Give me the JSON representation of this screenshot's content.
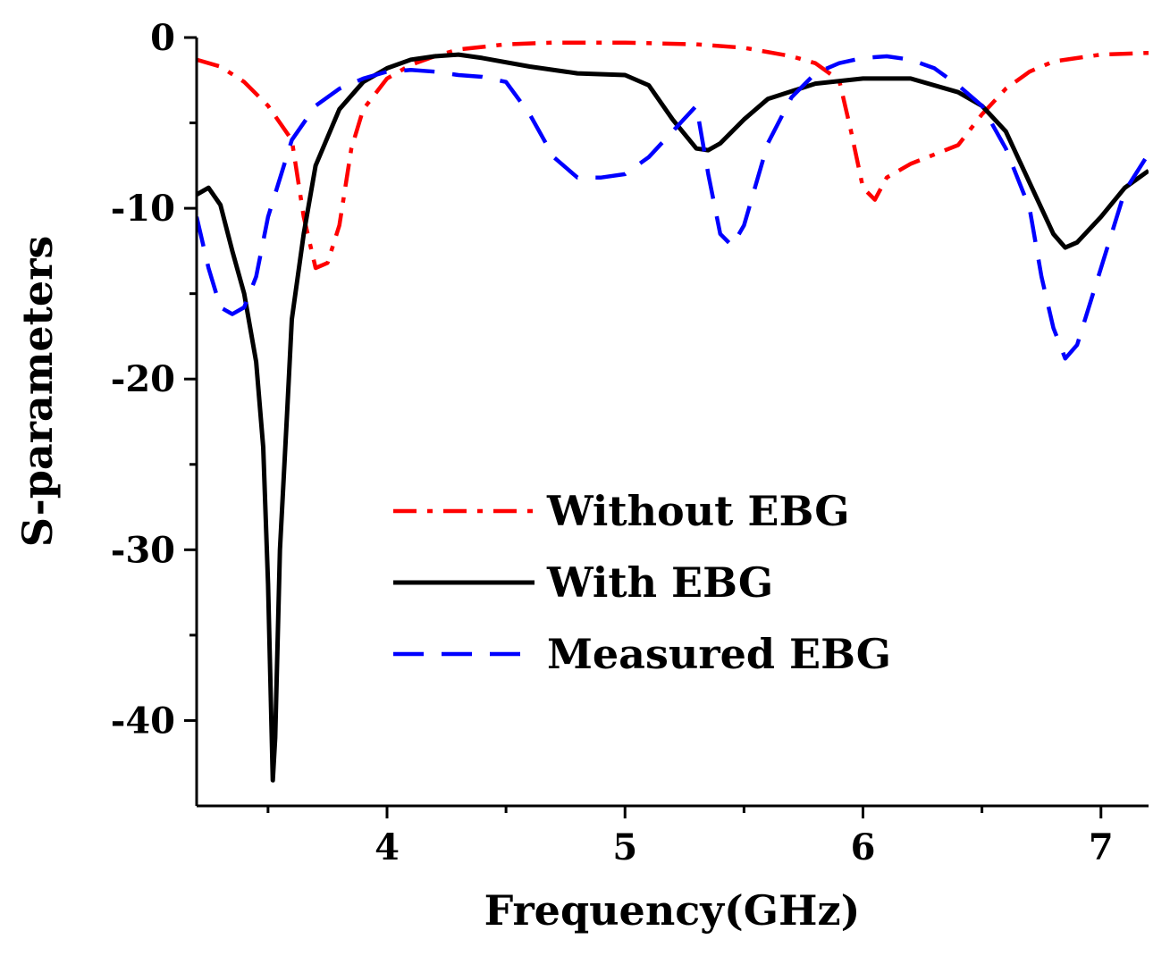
{
  "chart_data": {
    "type": "line",
    "title": "",
    "xlabel": "Frequency(GHz)",
    "ylabel": "S-parameters",
    "xlim": [
      3.2,
      7.2
    ],
    "ylim": [
      -45,
      0
    ],
    "xticks": [
      4,
      5,
      6,
      7
    ],
    "xtick_labels": [
      "4",
      "5",
      "6",
      "7"
    ],
    "yticks": [
      0,
      -10,
      -20,
      -30,
      -40
    ],
    "ytick_labels": [
      "0",
      "-10",
      "-20",
      "-30",
      "-40"
    ],
    "grid": false,
    "legend_position": "center-right",
    "series": [
      {
        "name": "Without EBG",
        "color": "#ff0000",
        "style": "dashdot",
        "x": [
          3.2,
          3.3,
          3.4,
          3.5,
          3.6,
          3.65,
          3.7,
          3.75,
          3.8,
          3.85,
          3.9,
          4.0,
          4.1,
          4.2,
          4.3,
          4.5,
          4.7,
          5.0,
          5.3,
          5.5,
          5.7,
          5.8,
          5.9,
          5.95,
          6.0,
          6.05,
          6.1,
          6.2,
          6.4,
          6.5,
          6.6,
          6.7,
          6.8,
          7.0,
          7.2
        ],
        "y": [
          -1.3,
          -1.7,
          -2.6,
          -4.0,
          -6.0,
          -10.5,
          -13.5,
          -13.2,
          -11.0,
          -6.5,
          -4.2,
          -2.4,
          -1.6,
          -1.1,
          -0.7,
          -0.4,
          -0.3,
          -0.3,
          -0.4,
          -0.6,
          -1.1,
          -1.5,
          -2.5,
          -5.5,
          -8.8,
          -9.5,
          -8.2,
          -7.4,
          -6.3,
          -4.5,
          -3.0,
          -2.0,
          -1.4,
          -1.0,
          -0.9
        ]
      },
      {
        "name": "With EBG",
        "color": "#000000",
        "style": "solid",
        "x": [
          3.2,
          3.25,
          3.3,
          3.35,
          3.4,
          3.45,
          3.48,
          3.5,
          3.52,
          3.53,
          3.55,
          3.58,
          3.6,
          3.65,
          3.7,
          3.8,
          3.9,
          4.0,
          4.1,
          4.2,
          4.3,
          4.4,
          4.6,
          4.8,
          5.0,
          5.1,
          5.2,
          5.3,
          5.35,
          5.4,
          5.5,
          5.6,
          5.8,
          6.0,
          6.2,
          6.4,
          6.5,
          6.6,
          6.7,
          6.8,
          6.85,
          6.9,
          7.0,
          7.1,
          7.2
        ],
        "y": [
          -9.2,
          -8.8,
          -9.8,
          -12.5,
          -15.0,
          -19.0,
          -24.0,
          -32.0,
          -43.5,
          -41.0,
          -30.0,
          -22.0,
          -16.5,
          -11.5,
          -7.5,
          -4.2,
          -2.6,
          -1.8,
          -1.3,
          -1.1,
          -1.0,
          -1.2,
          -1.7,
          -2.1,
          -2.2,
          -2.8,
          -4.8,
          -6.5,
          -6.6,
          -6.2,
          -4.8,
          -3.6,
          -2.7,
          -2.4,
          -2.4,
          -3.2,
          -4.0,
          -5.5,
          -8.5,
          -11.5,
          -12.3,
          -12.0,
          -10.5,
          -8.8,
          -7.8
        ]
      },
      {
        "name": "Measured EBG",
        "color": "#0000ff",
        "style": "dashed",
        "x": [
          3.2,
          3.25,
          3.3,
          3.35,
          3.4,
          3.45,
          3.5,
          3.6,
          3.7,
          3.8,
          3.9,
          4.0,
          4.1,
          4.2,
          4.3,
          4.4,
          4.5,
          4.6,
          4.7,
          4.8,
          4.9,
          5.0,
          5.1,
          5.2,
          5.3,
          5.35,
          5.4,
          5.45,
          5.5,
          5.6,
          5.7,
          5.8,
          5.9,
          6.0,
          6.1,
          6.2,
          6.3,
          6.4,
          6.5,
          6.6,
          6.7,
          6.75,
          6.8,
          6.85,
          6.9,
          7.0,
          7.1,
          7.2
        ],
        "y": [
          -10.5,
          -13.5,
          -15.8,
          -16.2,
          -15.8,
          -14.0,
          -10.5,
          -6.0,
          -4.0,
          -3.0,
          -2.4,
          -2.0,
          -1.9,
          -2.0,
          -2.2,
          -2.3,
          -2.6,
          -4.5,
          -7.0,
          -8.2,
          -8.2,
          -8.0,
          -7.0,
          -5.5,
          -4.0,
          -8.0,
          -11.5,
          -12.2,
          -11.0,
          -6.2,
          -3.5,
          -2.1,
          -1.5,
          -1.2,
          -1.1,
          -1.3,
          -1.8,
          -2.8,
          -4.0,
          -6.5,
          -10.0,
          -14.0,
          -17.0,
          -18.8,
          -18.0,
          -13.5,
          -9.0,
          -6.8
        ]
      }
    ]
  }
}
